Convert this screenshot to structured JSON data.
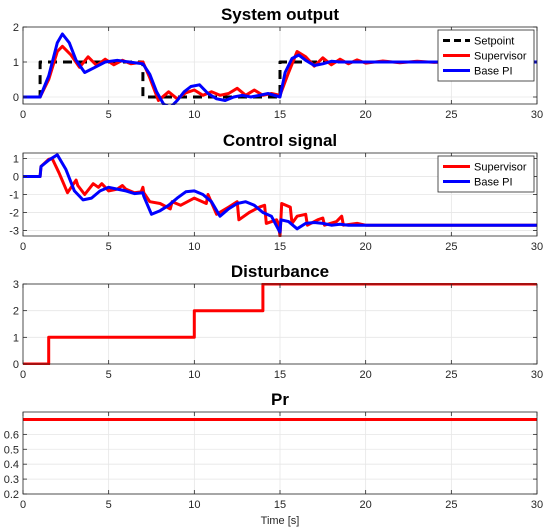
{
  "colors": {
    "setpoint": "#000000",
    "supervisor": "#ff0000",
    "base_pi": "#0000ff",
    "grid": "#e6e6e6",
    "axes": "#262626"
  },
  "chart_data": [
    {
      "type": "line",
      "title": "System output",
      "xlabel": "",
      "ylabel": "",
      "xlim": [
        0,
        30
      ],
      "ylim": [
        -0.2,
        2
      ],
      "xticks": [
        0,
        5,
        10,
        15,
        20,
        25,
        30
      ],
      "yticks": [
        0,
        1,
        2
      ],
      "grid": true,
      "legend": "top-right",
      "series": [
        {
          "name": "Setpoint",
          "color": "#000000",
          "style": "dashed",
          "x": [
            0,
            1,
            1,
            7,
            7,
            15,
            15,
            30
          ],
          "y": [
            0,
            0,
            1,
            1,
            0,
            0,
            1,
            1
          ]
        },
        {
          "name": "Supervisor",
          "color": "#ff0000",
          "style": "solid",
          "x": [
            0,
            1,
            1.5,
            2,
            2.3,
            2.8,
            3.3,
            3.8,
            4.3,
            4.8,
            5.3,
            5.8,
            6.3,
            7,
            7.4,
            7.9,
            8.5,
            9,
            9.5,
            10,
            10.5,
            11,
            11.5,
            12,
            12.5,
            13,
            13.5,
            14,
            14.5,
            15,
            15.5,
            16,
            16.5,
            17,
            17.5,
            18,
            18.5,
            19,
            19.5,
            20,
            21,
            22,
            23,
            24,
            25,
            26,
            27,
            28,
            29,
            30
          ],
          "y": [
            0,
            0,
            0.5,
            1.3,
            1.45,
            1.2,
            0.85,
            1.15,
            0.9,
            1.08,
            0.92,
            1.05,
            0.95,
            1.0,
            0.55,
            -0.1,
            0.15,
            -0.05,
            0.12,
            0.2,
            0.05,
            0.15,
            0.05,
            0.1,
            0.25,
            0.05,
            0.2,
            0.05,
            0.1,
            0.05,
            0.7,
            1.3,
            1.15,
            0.88,
            1.12,
            0.92,
            1.08,
            0.95,
            1.06,
            0.97,
            1.03,
            0.98,
            1.02,
            0.99,
            1.01,
            1.0,
            1.0,
            1.0,
            1.0,
            1.0
          ]
        },
        {
          "name": "Base PI",
          "color": "#0000ff",
          "style": "solid",
          "x": [
            0,
            1,
            1.5,
            2,
            2.3,
            2.7,
            3.1,
            3.6,
            4.2,
            4.8,
            5.5,
            6.2,
            7,
            7.4,
            7.8,
            8.2,
            8.6,
            9,
            9.4,
            9.8,
            10.3,
            10.8,
            11.3,
            11.8,
            12.3,
            12.8,
            13.3,
            13.8,
            14.3,
            15,
            15.3,
            15.7,
            16.1,
            16.5,
            17,
            17.5,
            18,
            18.5,
            19,
            20,
            21,
            22,
            23,
            24,
            25,
            26,
            27,
            28,
            29,
            30
          ],
          "y": [
            0,
            0,
            0.6,
            1.55,
            1.8,
            1.55,
            1.05,
            0.7,
            0.85,
            1.0,
            1.05,
            1.0,
            0.95,
            0.65,
            0.15,
            -0.2,
            -0.3,
            -0.1,
            0.15,
            0.3,
            0.35,
            0.1,
            -0.05,
            -0.1,
            0.0,
            0.05,
            0.0,
            0.05,
            0.1,
            0.0,
            0.7,
            1.1,
            1.2,
            1.05,
            0.9,
            0.95,
            1.02,
            1.0,
            1.0,
            1.0,
            1.0,
            1.0,
            1.0,
            1.0,
            1.0,
            1.0,
            1.0,
            1.0,
            1.0,
            1.0
          ]
        }
      ]
    },
    {
      "type": "line",
      "title": "Control signal",
      "xlabel": "",
      "ylabel": "",
      "xlim": [
        0,
        30
      ],
      "ylim": [
        -3.3,
        1.3
      ],
      "xticks": [
        0,
        5,
        10,
        15,
        20,
        25,
        30
      ],
      "yticks": [
        -3,
        -2,
        -1,
        0,
        1
      ],
      "grid": true,
      "legend": "top-right",
      "series": [
        {
          "name": "Supervisor",
          "color": "#ff0000",
          "style": "solid",
          "x": [
            0,
            1,
            1.05,
            1.5,
            1.7,
            2.1,
            2.6,
            3.1,
            3.2,
            3.6,
            4.1,
            4.4,
            4.6,
            5.0,
            5.5,
            5.8,
            6.0,
            6.5,
            6.9,
            7.0,
            7.05,
            7.4,
            8.0,
            8.6,
            8.7,
            9.2,
            10.0,
            10.7,
            10.8,
            11.3,
            12.0,
            12.5,
            12.6,
            13.2,
            13.8,
            14.1,
            14.2,
            14.8,
            14.9,
            15.0,
            15.1,
            15.6,
            15.7,
            16.0,
            16.5,
            16.6,
            17.2,
            17.5,
            17.6,
            18.3,
            18.6,
            18.7,
            19.5,
            20,
            21,
            22,
            23,
            24,
            25,
            26,
            27,
            28,
            29,
            30
          ],
          "y": [
            0,
            0,
            0.55,
            0.95,
            1.0,
            0.2,
            -0.9,
            -0.2,
            -0.5,
            -1.0,
            -0.4,
            -0.6,
            -0.4,
            -0.8,
            -0.7,
            -0.5,
            -0.7,
            -0.9,
            -0.85,
            -0.6,
            -0.9,
            -1.4,
            -1.5,
            -1.8,
            -1.4,
            -1.6,
            -1.2,
            -1.5,
            -1.0,
            -2.1,
            -1.7,
            -1.4,
            -2.4,
            -2.0,
            -1.7,
            -1.6,
            -2.6,
            -2.4,
            -2.6,
            -3.3,
            -1.5,
            -1.7,
            -2.6,
            -2.2,
            -2.1,
            -2.7,
            -2.4,
            -2.3,
            -2.7,
            -2.5,
            -2.2,
            -2.7,
            -2.6,
            -2.7,
            -2.7,
            -2.7,
            -2.7,
            -2.7,
            -2.7,
            -2.7,
            -2.7,
            -2.7,
            -2.7,
            -2.7
          ]
        },
        {
          "name": "Base PI",
          "color": "#0000ff",
          "style": "solid",
          "x": [
            0,
            1,
            1.05,
            1.5,
            2.0,
            2.5,
            3.0,
            3.5,
            4.0,
            4.5,
            5.0,
            5.5,
            6.0,
            6.5,
            7.0,
            7.05,
            7.5,
            8.0,
            8.5,
            9.0,
            9.5,
            10.0,
            10.5,
            11.0,
            11.5,
            12.0,
            12.5,
            13.0,
            13.5,
            14.0,
            14.5,
            15.0,
            15.05,
            15.5,
            16.0,
            16.5,
            17.0,
            17.5,
            18.0,
            18.5,
            19.0,
            20,
            21,
            22,
            23,
            24,
            25,
            26,
            27,
            28,
            29,
            30
          ],
          "y": [
            0,
            0,
            0.55,
            0.9,
            1.2,
            0.4,
            -0.8,
            -1.3,
            -1.2,
            -0.8,
            -0.6,
            -0.7,
            -0.8,
            -0.95,
            -0.9,
            -1.1,
            -2.1,
            -1.9,
            -1.6,
            -1.2,
            -0.85,
            -0.8,
            -1.0,
            -1.4,
            -2.2,
            -1.8,
            -1.5,
            -1.4,
            -1.6,
            -2.0,
            -2.2,
            -3.1,
            -2.4,
            -2.5,
            -2.9,
            -2.6,
            -2.55,
            -2.6,
            -2.7,
            -2.65,
            -2.7,
            -2.7,
            -2.7,
            -2.7,
            -2.7,
            -2.7,
            -2.7,
            -2.7,
            -2.7,
            -2.7,
            -2.7,
            -2.7
          ]
        }
      ]
    },
    {
      "type": "line",
      "title": "Disturbance",
      "xlabel": "",
      "ylabel": "",
      "xlim": [
        0,
        30
      ],
      "ylim": [
        0,
        3
      ],
      "xticks": [
        0,
        5,
        10,
        15,
        20,
        25,
        30
      ],
      "yticks": [
        0,
        1,
        2,
        3
      ],
      "grid": true,
      "legend": "none",
      "series": [
        {
          "name": "",
          "color": "#ff0000",
          "style": "solid",
          "x": [
            0,
            1.5,
            1.5,
            10,
            10,
            14,
            14,
            30
          ],
          "y": [
            0,
            0,
            1,
            1,
            2,
            2,
            3,
            3
          ]
        }
      ]
    },
    {
      "type": "line",
      "title": "Pr",
      "xlabel": "Time [s]",
      "ylabel": "",
      "xlim": [
        0,
        30
      ],
      "ylim": [
        0.2,
        0.75
      ],
      "xticks": [
        0,
        5,
        10,
        15,
        20,
        25,
        30
      ],
      "yticks": [
        0.2,
        0.3,
        0.4,
        0.5,
        0.6
      ],
      "grid": true,
      "legend": "none",
      "series": [
        {
          "name": "",
          "color": "#ff0000",
          "style": "solid",
          "x": [
            0,
            30
          ],
          "y": [
            0.7,
            0.7
          ]
        }
      ]
    }
  ]
}
